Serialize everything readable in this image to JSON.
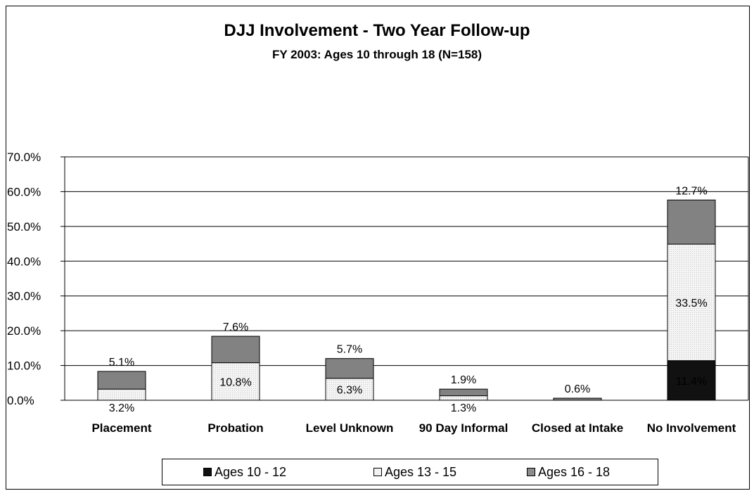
{
  "chart_data": {
    "type": "bar",
    "stacked": true,
    "title": "DJJ Involvement - Two Year Follow-up",
    "subtitle": "FY 2003:  Ages 10 through 18 (N=158)",
    "categories": [
      "Placement",
      "Probation",
      "Level Unknown",
      "90 Day Informal",
      "Closed at Intake",
      "No Involvement"
    ],
    "series": [
      {
        "name": "Ages 10 - 12",
        "color": "#111111",
        "values": [
          0,
          0,
          0,
          0,
          0,
          11.4
        ],
        "labels": [
          "",
          "",
          "",
          "",
          "",
          "11.4%"
        ]
      },
      {
        "name": "Ages 13 - 15",
        "color": "#f2f2f2",
        "values": [
          3.2,
          10.8,
          6.3,
          1.3,
          0,
          33.5
        ],
        "labels": [
          "3.2%",
          "10.8%",
          "6.3%",
          "1.3%",
          "",
          "33.5%"
        ]
      },
      {
        "name": "Ages 16 - 18",
        "color": "#8c8c8c",
        "values": [
          5.1,
          7.6,
          5.7,
          1.9,
          0.6,
          12.7
        ],
        "labels": [
          "5.1%",
          "7.6%",
          "5.7%",
          "1.9%",
          "0.6%",
          "12.7%"
        ]
      }
    ],
    "ylim": [
      0,
      70
    ],
    "yticks": [
      "0.0%",
      "10.0%",
      "20.0%",
      "30.0%",
      "40.0%",
      "50.0%",
      "60.0%",
      "70.0%"
    ],
    "grid": true,
    "legend_position": "bottom"
  }
}
